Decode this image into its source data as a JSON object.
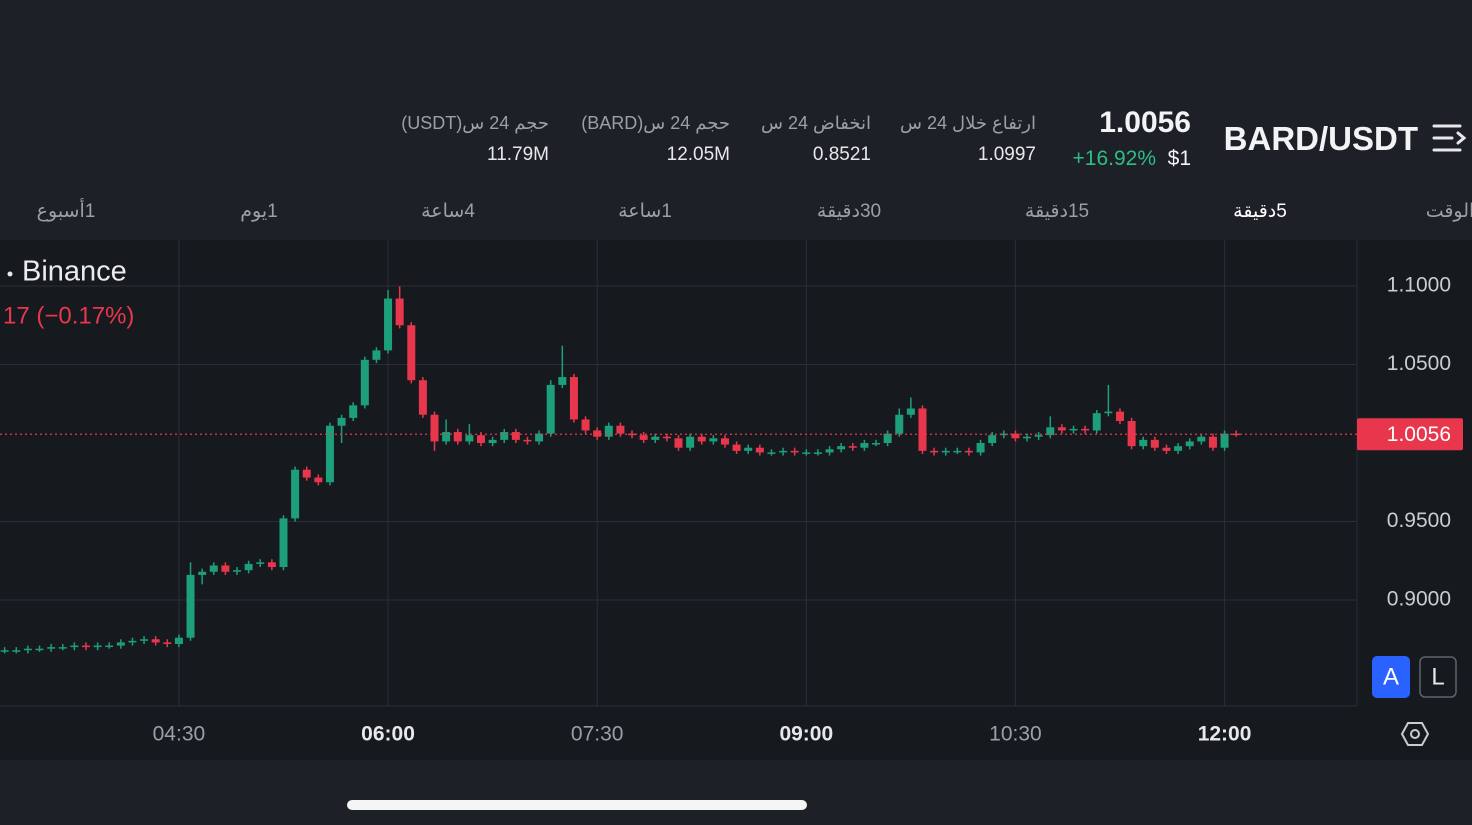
{
  "header": {
    "pair": "BARD/USDT",
    "price": "1.0056",
    "change": "+16.92%",
    "usd_price": "$1",
    "stats": [
      {
        "label": "ارتفاع خلال 24 س",
        "value": "1.0997"
      },
      {
        "label": "انخفاض 24 س",
        "value": "0.8521"
      },
      {
        "label": "حجم 24 س(BARD)",
        "value": "12.05M"
      },
      {
        "label": "حجم 24 س(USDT)",
        "value": "11.79M"
      }
    ]
  },
  "tabs": [
    "الوقت",
    "5دقيقة",
    "15دقيقة",
    "30دقيقة",
    "1ساعة",
    "4ساعة",
    "1يوم",
    "1أسبوع"
  ],
  "chart_data": {
    "type": "candlestick",
    "source": "Binance",
    "change_text": "17 (−0.17%)",
    "up_color": "#1c9f7a",
    "down_color": "#e8374d",
    "last_price": 1.0056,
    "grid": true,
    "xlim": [
      "03:13",
      "12:57"
    ],
    "xticks": [
      "04:30",
      "06:00",
      "07:30",
      "09:00",
      "10:30",
      "12:00"
    ],
    "ylim": [
      0.8325,
      1.1293
    ],
    "yticks": [
      {
        "value": 0.9,
        "label": "0.9000"
      },
      {
        "value": 0.95,
        "label": "0.9500"
      },
      {
        "value": 1.05,
        "label": "1.0500"
      },
      {
        "value": 1.1,
        "label": "1.1000"
      }
    ],
    "x": [
      "03:15",
      "03:20",
      "03:25",
      "03:30",
      "03:35",
      "03:40",
      "03:45",
      "03:50",
      "03:55",
      "04:00",
      "04:05",
      "04:10",
      "04:15",
      "04:20",
      "04:25",
      "04:30",
      "04:35",
      "04:40",
      "04:45",
      "04:50",
      "04:55",
      "05:00",
      "05:05",
      "05:10",
      "05:15",
      "05:20",
      "05:25",
      "05:30",
      "05:35",
      "05:40",
      "05:45",
      "05:50",
      "05:55",
      "06:00",
      "06:05",
      "06:10",
      "06:15",
      "06:20",
      "06:25",
      "06:30",
      "06:35",
      "06:40",
      "06:45",
      "06:50",
      "06:55",
      "07:00",
      "07:05",
      "07:10",
      "07:15",
      "07:20",
      "07:25",
      "07:30",
      "07:35",
      "07:40",
      "07:45",
      "07:50",
      "07:55",
      "08:00",
      "08:05",
      "08:10",
      "08:15",
      "08:20",
      "08:25",
      "08:30",
      "08:35",
      "08:40",
      "08:45",
      "08:50",
      "08:55",
      "09:00",
      "09:05",
      "09:10",
      "09:15",
      "09:20",
      "09:25",
      "09:30",
      "09:35",
      "09:40",
      "09:45",
      "09:50",
      "09:55",
      "10:00",
      "10:05",
      "10:10",
      "10:15",
      "10:20",
      "10:25",
      "10:30",
      "10:35",
      "10:40",
      "10:45",
      "10:50",
      "10:55",
      "11:00",
      "11:05",
      "11:10",
      "11:15",
      "11:20",
      "11:25",
      "11:30",
      "11:35",
      "11:40",
      "11:45",
      "11:50",
      "11:55",
      "12:00",
      "12:05"
    ],
    "open": [
      0.868,
      0.868,
      0.868,
      0.869,
      0.869,
      0.87,
      0.87,
      0.871,
      0.87,
      0.871,
      0.871,
      0.873,
      0.874,
      0.875,
      0.873,
      0.872,
      0.876,
      0.916,
      0.918,
      0.922,
      0.918,
      0.919,
      0.923,
      0.924,
      0.921,
      0.952,
      0.983,
      0.978,
      0.975,
      1.011,
      1.016,
      1.024,
      1.053,
      1.059,
      1.092,
      1.075,
      1.04,
      1.018,
      1.001,
      1.007,
      1.001,
      1.005,
      1.0,
      1.002,
      1.007,
      1.002,
      1.001,
      1.006,
      1.037,
      1.042,
      1.015,
      1.008,
      1.004,
      1.011,
      1.006,
      1.005,
      1.002,
      1.004,
      1.003,
      0.997,
      1.004,
      1.001,
      1.003,
      0.999,
      0.995,
      0.997,
      0.994,
      0.994,
      0.995,
      0.994,
      0.994,
      0.994,
      0.996,
      0.998,
      0.997,
      1.0,
      1.0,
      1.006,
      1.018,
      1.022,
      0.995,
      0.994,
      0.995,
      0.995,
      0.994,
      1.0,
      1.005,
      1.006,
      1.003,
      1.004,
      1.005,
      1.01,
      1.008,
      1.009,
      1.008,
      1.019,
      1.02,
      1.014,
      0.998,
      1.002,
      0.997,
      0.995,
      0.998,
      1.001,
      1.004,
      0.997,
      1.006
    ],
    "high": [
      0.87,
      0.87,
      0.871,
      0.871,
      0.872,
      0.872,
      0.873,
      0.873,
      0.873,
      0.873,
      0.875,
      0.876,
      0.877,
      0.877,
      0.875,
      0.878,
      0.924,
      0.92,
      0.924,
      0.924,
      0.921,
      0.925,
      0.926,
      0.926,
      0.954,
      0.985,
      0.985,
      0.98,
      1.013,
      1.018,
      1.026,
      1.055,
      1.061,
      1.0975,
      1.0997,
      1.077,
      1.042,
      1.02,
      1.015,
      1.009,
      1.012,
      1.007,
      1.004,
      1.009,
      1.009,
      1.004,
      1.008,
      1.04,
      1.062,
      1.044,
      1.017,
      1.01,
      1.013,
      1.013,
      1.008,
      1.007,
      1.006,
      1.006,
      1.005,
      1.006,
      1.006,
      1.005,
      1.005,
      1.001,
      0.999,
      0.999,
      0.996,
      0.997,
      0.997,
      0.996,
      0.996,
      0.998,
      1.0,
      1.0,
      1.002,
      1.002,
      1.008,
      1.022,
      1.029,
      1.024,
      0.997,
      0.997,
      0.997,
      0.997,
      1.002,
      1.007,
      1.008,
      1.008,
      1.006,
      1.007,
      1.017,
      1.012,
      1.011,
      1.011,
      1.021,
      1.037,
      1.022,
      1.016,
      1.004,
      1.004,
      0.999,
      1.0,
      1.003,
      1.006,
      1.006,
      1.008,
      1.008
    ],
    "low": [
      0.866,
      0.866,
      0.866,
      0.867,
      0.867,
      0.868,
      0.868,
      0.868,
      0.868,
      0.869,
      0.869,
      0.871,
      0.872,
      0.871,
      0.87,
      0.87,
      0.874,
      0.91,
      0.916,
      0.916,
      0.916,
      0.917,
      0.921,
      0.919,
      0.919,
      0.95,
      0.976,
      0.973,
      0.973,
      1.0,
      1.014,
      1.022,
      1.051,
      1.057,
      1.073,
      1.038,
      1.016,
      0.995,
      0.999,
      0.999,
      0.999,
      0.998,
      0.998,
      1.0,
      1.0,
      0.999,
      0.999,
      1.004,
      1.035,
      1.013,
      1.006,
      1.002,
      1.002,
      1.004,
      1.003,
      1.0,
      1.0,
      1.001,
      0.995,
      0.995,
      0.999,
      0.999,
      0.997,
      0.993,
      0.993,
      0.992,
      0.992,
      0.992,
      0.992,
      0.992,
      0.992,
      0.992,
      0.994,
      0.995,
      0.995,
      0.998,
      0.998,
      1.004,
      1.016,
      0.993,
      0.992,
      0.992,
      0.993,
      0.992,
      0.992,
      0.998,
      1.003,
      1.001,
      1.001,
      1.002,
      1.003,
      1.006,
      1.006,
      1.006,
      1.006,
      1.017,
      1.012,
      0.996,
      0.996,
      0.995,
      0.993,
      0.993,
      0.996,
      0.999,
      0.995,
      0.995,
      1.004
    ],
    "close": [
      0.868,
      0.868,
      0.869,
      0.869,
      0.87,
      0.87,
      0.871,
      0.87,
      0.871,
      0.871,
      0.873,
      0.874,
      0.875,
      0.873,
      0.872,
      0.876,
      0.916,
      0.918,
      0.922,
      0.918,
      0.919,
      0.923,
      0.924,
      0.921,
      0.952,
      0.983,
      0.978,
      0.975,
      1.011,
      1.016,
      1.024,
      1.053,
      1.059,
      1.092,
      1.075,
      1.04,
      1.018,
      1.001,
      1.007,
      1.001,
      1.005,
      1.0,
      1.002,
      1.007,
      1.002,
      1.001,
      1.006,
      1.037,
      1.042,
      1.015,
      1.008,
      1.004,
      1.011,
      1.006,
      1.005,
      1.002,
      1.004,
      1.003,
      0.997,
      1.004,
      1.001,
      1.003,
      0.999,
      0.995,
      0.997,
      0.994,
      0.994,
      0.995,
      0.994,
      0.994,
      0.994,
      0.996,
      0.998,
      0.997,
      1.0,
      1.0,
      1.006,
      1.018,
      1.022,
      0.995,
      0.994,
      0.995,
      0.995,
      0.994,
      1.0,
      1.005,
      1.006,
      1.003,
      1.004,
      1.005,
      1.01,
      1.008,
      1.009,
      1.008,
      1.019,
      1.02,
      1.014,
      0.998,
      1.002,
      0.997,
      0.995,
      0.998,
      1.001,
      1.004,
      0.997,
      1.006,
      1.0056
    ]
  },
  "buttons": [
    "A",
    "L"
  ]
}
